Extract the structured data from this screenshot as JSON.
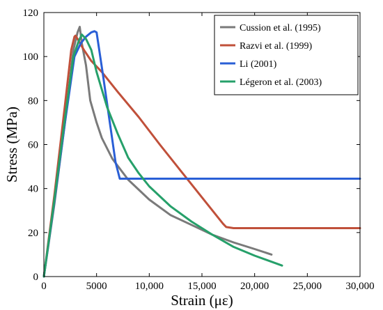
{
  "chart_data": {
    "type": "line",
    "title": "",
    "xlabel": "Strain (με)",
    "ylabel": "Stress (MPa)",
    "xlim": [
      0,
      30000
    ],
    "ylim": [
      0,
      120
    ],
    "x_ticks": [
      0,
      5000,
      10000,
      15000,
      20000,
      25000,
      30000
    ],
    "x_tick_labels": [
      "0",
      "5000",
      "10,000",
      "15,000",
      "20,000",
      "25,000",
      "30,000"
    ],
    "y_ticks": [
      0,
      20,
      40,
      60,
      80,
      100,
      120
    ],
    "y_tick_labels": [
      "0",
      "20",
      "40",
      "60",
      "80",
      "100",
      "120"
    ],
    "grid": false,
    "legend_position": "top-right",
    "series": [
      {
        "name": "Cussion et al. (1995)",
        "color": "#7a7a7a",
        "points": [
          [
            0,
            0
          ],
          [
            1000,
            33
          ],
          [
            2000,
            70
          ],
          [
            2800,
            103
          ],
          [
            3200,
            111
          ],
          [
            3400,
            113.5
          ],
          [
            3600,
            106
          ],
          [
            4000,
            96
          ],
          [
            4400,
            80
          ],
          [
            5000,
            70
          ],
          [
            5500,
            63
          ],
          [
            6500,
            53.5
          ],
          [
            8000,
            44
          ],
          [
            10000,
            35
          ],
          [
            12000,
            28
          ],
          [
            14000,
            23.5
          ],
          [
            16000,
            19
          ],
          [
            18000,
            15.5
          ],
          [
            20000,
            12.5
          ],
          [
            21600,
            10
          ]
        ]
      },
      {
        "name": "Razvi et al. (1999)",
        "color": "#c0503a",
        "points": [
          [
            0,
            0
          ],
          [
            1000,
            37
          ],
          [
            2000,
            78
          ],
          [
            2600,
            103
          ],
          [
            2900,
            109
          ],
          [
            3000,
            109.5
          ],
          [
            3200,
            108
          ],
          [
            3800,
            103
          ],
          [
            4500,
            98
          ],
          [
            5500,
            93
          ],
          [
            7000,
            84
          ],
          [
            9000,
            72.5
          ],
          [
            11000,
            60
          ],
          [
            13000,
            48
          ],
          [
            15000,
            36
          ],
          [
            17000,
            24
          ],
          [
            17300,
            22.5
          ],
          [
            18000,
            22
          ],
          [
            30000,
            22
          ]
        ]
      },
      {
        "name": "Li (2001)",
        "color": "#2a5fd6",
        "points": [
          [
            0,
            0
          ],
          [
            1000,
            34
          ],
          [
            2000,
            70
          ],
          [
            2900,
            100
          ],
          [
            3500,
            106
          ],
          [
            4000,
            109
          ],
          [
            4500,
            111
          ],
          [
            4800,
            111.5
          ],
          [
            5000,
            111
          ],
          [
            5600,
            92
          ],
          [
            6200,
            72
          ],
          [
            6800,
            52
          ],
          [
            7200,
            44.5
          ],
          [
            30000,
            44.5
          ]
        ]
      },
      {
        "name": "Légeron et al. (2003)",
        "color": "#26a06a",
        "points": [
          [
            0,
            0
          ],
          [
            1000,
            35
          ],
          [
            2000,
            72
          ],
          [
            2800,
            100
          ],
          [
            3300,
            107
          ],
          [
            3600,
            110
          ],
          [
            4000,
            108
          ],
          [
            4500,
            103
          ],
          [
            5000,
            93
          ],
          [
            6000,
            77
          ],
          [
            7000,
            65
          ],
          [
            8000,
            54
          ],
          [
            9000,
            47
          ],
          [
            10000,
            41
          ],
          [
            12000,
            32
          ],
          [
            14000,
            25
          ],
          [
            16000,
            19
          ],
          [
            18000,
            13.5
          ],
          [
            20000,
            9.5
          ],
          [
            22600,
            5
          ]
        ]
      }
    ]
  }
}
